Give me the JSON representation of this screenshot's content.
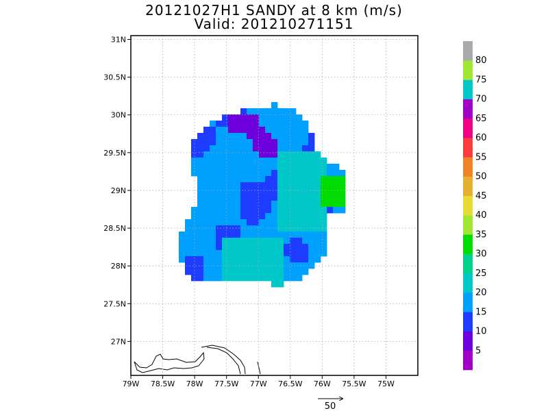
{
  "title": {
    "line1": "20121027H1 SANDY at 8 km (m/s)",
    "line2": "Valid: 201210271151"
  },
  "chart_data": {
    "type": "heatmap",
    "title": "20121027H1 SANDY at 8 km (m/s)",
    "subtitle": "Valid: 201210271151",
    "xlabel": "",
    "ylabel": "",
    "xlim": [
      -79.0,
      -74.5
    ],
    "ylim": [
      26.55,
      31.05
    ],
    "grid": true,
    "x_ticks": [
      -79,
      -78.5,
      -78,
      -77.5,
      -77,
      -76.5,
      -76,
      -75.5,
      -75
    ],
    "x_tick_labels": [
      "79W",
      "78.5W",
      "78W",
      "77.5W",
      "77W",
      "76.5W",
      "76W",
      "75.5W",
      "75W"
    ],
    "y_ticks": [
      27,
      27.5,
      28,
      28.5,
      29,
      29.5,
      30,
      30.5,
      31
    ],
    "y_tick_labels": [
      "27N",
      "27.5N",
      "28N",
      "28.5N",
      "29N",
      "29.5N",
      "30N",
      "30.5N",
      "31N"
    ],
    "vector_reference": {
      "value": 50,
      "label": "50"
    },
    "colorbar": {
      "position": "right",
      "levels": [
        5,
        10,
        15,
        20,
        25,
        30,
        35,
        40,
        45,
        50,
        55,
        60,
        65,
        70,
        75,
        80
      ],
      "labels": [
        "5",
        "10",
        "15",
        "20",
        "25",
        "30",
        "35",
        "40",
        "45",
        "50",
        "55",
        "60",
        "65",
        "70",
        "75",
        "80"
      ],
      "colors": [
        "#a000c8",
        "#6e00dc",
        "#1e3cff",
        "#00a0ff",
        "#00c8c8",
        "#00d28c",
        "#00dc00",
        "#a0e632",
        "#e6dc32",
        "#e6af2d",
        "#f08228",
        "#fa3c3c",
        "#f00082",
        "#a000c8",
        "#00c8c8",
        "#a0e632",
        "#aaaaaa"
      ]
    },
    "field": {
      "center": [
        -76.9,
        28.9
      ],
      "description_levels": [
        "15",
        "20",
        "25",
        "10"
      ]
    }
  }
}
